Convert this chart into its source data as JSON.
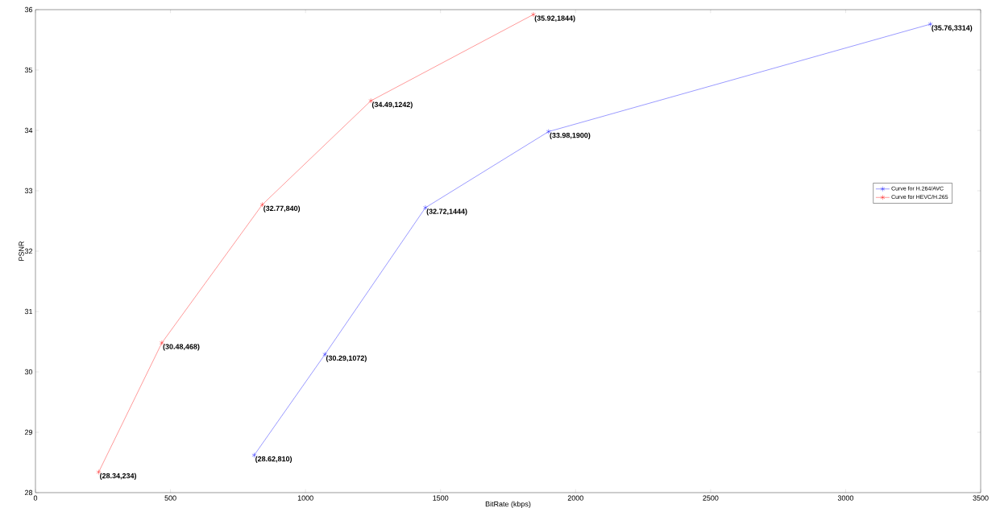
{
  "chart_data": {
    "type": "line",
    "xlabel": "BitRate (kbps)",
    "ylabel": "PSNR",
    "series": [
      {
        "name": "Curve for H.264/AVC",
        "color": "#0000ff",
        "x": [
          810,
          1072,
          1444,
          1900,
          3314
        ],
        "values": [
          28.62,
          30.29,
          32.72,
          33.98,
          35.76
        ]
      },
      {
        "name": "Curve for HEVC/H.265",
        "color": "#ff0000",
        "x": [
          234,
          468,
          840,
          1242,
          1844
        ],
        "values": [
          28.34,
          30.48,
          32.77,
          34.49,
          35.92
        ]
      }
    ],
    "xlim": [
      0,
      3500
    ],
    "ylim": [
      28,
      36
    ],
    "xticks": [
      0,
      500,
      1000,
      1500,
      2000,
      2500,
      3000,
      3500
    ],
    "yticks": [
      28,
      29,
      30,
      31,
      32,
      33,
      34,
      35,
      36
    ],
    "marker": "cross",
    "line_style": "solid",
    "grid": false,
    "legend": "right",
    "annotations": [
      {
        "text": "(28.62,810)",
        "x": 810,
        "y": 28.62
      },
      {
        "text": "(30.29,1072)",
        "x": 1072,
        "y": 30.29
      },
      {
        "text": "(32.72,1444)",
        "x": 1444,
        "y": 32.72
      },
      {
        "text": "(33.98,1900)",
        "x": 1900,
        "y": 33.98
      },
      {
        "text": "(35.76,3314)",
        "x": 3314,
        "y": 35.76
      },
      {
        "text": "(28.34,234)",
        "x": 234,
        "y": 28.34
      },
      {
        "text": "(30.48,468)",
        "x": 468,
        "y": 30.48
      },
      {
        "text": "(32.77,840)",
        "x": 840,
        "y": 32.77
      },
      {
        "text": "(34.49,1242)",
        "x": 1242,
        "y": 34.49
      },
      {
        "text": "(35.92,1844)",
        "x": 1844,
        "y": 35.92
      }
    ]
  }
}
